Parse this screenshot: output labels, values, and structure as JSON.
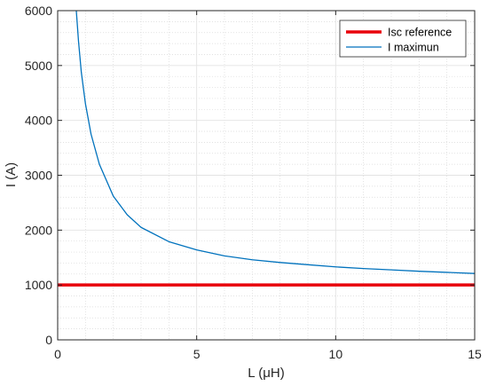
{
  "chart_data": {
    "type": "line",
    "title": "",
    "xlabel": "L (μH)",
    "ylabel": "I (A)",
    "xlim": [
      0,
      15
    ],
    "ylim": [
      0,
      6000
    ],
    "x_ticks": [
      0,
      5,
      10,
      15
    ],
    "x_tick_labels": [
      "0",
      "5",
      "10",
      "15"
    ],
    "y_ticks": [
      0,
      1000,
      2000,
      3000,
      4000,
      5000,
      6000
    ],
    "y_tick_labels": [
      "0",
      "1000",
      "2000",
      "3000",
      "4000",
      "5000",
      "6000"
    ],
    "grid": true,
    "minor_grid": true,
    "legend_position": "top-right",
    "series": [
      {
        "name": "Isc reference",
        "color": "#e8000b",
        "x": [
          0,
          15
        ],
        "y": [
          1000,
          1000
        ]
      },
      {
        "name": "I maximun",
        "color": "#0072bd",
        "x": [
          0.67,
          0.75,
          0.85,
          1,
          1.2,
          1.5,
          2,
          2.5,
          3,
          4,
          5,
          6,
          7,
          8,
          9,
          10,
          11,
          12,
          13,
          14,
          15
        ],
        "y": [
          6000,
          5440,
          4880,
          4300,
          3750,
          3200,
          2620,
          2280,
          2050,
          1790,
          1640,
          1530,
          1460,
          1410,
          1370,
          1330,
          1300,
          1275,
          1250,
          1230,
          1210
        ]
      }
    ]
  }
}
